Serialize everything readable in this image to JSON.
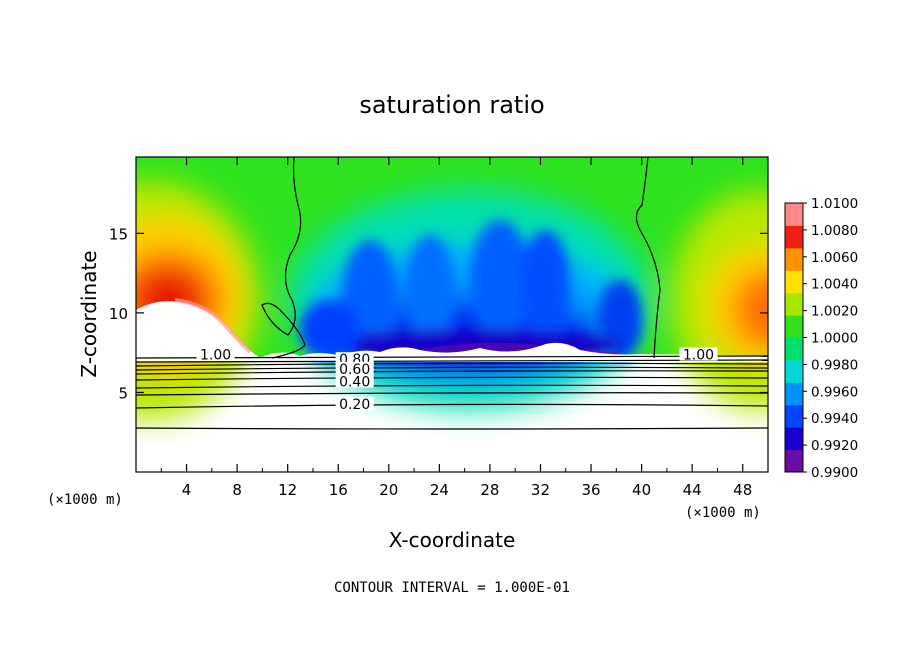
{
  "chart_data": {
    "type": "heatmap",
    "title": "saturation ratio",
    "xlabel": "X-coordinate",
    "ylabel": "Z-coordinate",
    "x_unit_label_left": "(×1000 m)",
    "x_unit_label_right": "(×1000 m)",
    "footer": "CONTOUR INTERVAL = 1.000E-01",
    "xlim": [
      0,
      50
    ],
    "ylim": [
      0,
      19.8
    ],
    "x_ticks": [
      4,
      8,
      12,
      16,
      20,
      24,
      28,
      32,
      36,
      40,
      44,
      48
    ],
    "x_tick_labels": [
      "4",
      "8",
      "12",
      "16",
      "20",
      "24",
      "28",
      "32",
      "36",
      "40",
      "44",
      "48"
    ],
    "y_ticks": [
      5,
      10,
      15
    ],
    "y_tick_labels": [
      "5",
      "10",
      "15"
    ],
    "colorbar": {
      "levels": [
        0.99,
        0.992,
        0.994,
        0.996,
        0.998,
        1.0,
        1.002,
        1.004,
        1.006,
        1.008,
        1.01
      ],
      "labels": [
        "0.9900",
        "0.9920",
        "0.9940",
        "0.9960",
        "0.9980",
        "1.0000",
        "1.0020",
        "1.0040",
        "1.0060",
        "1.0080",
        "1.0100"
      ],
      "colors": [
        "#6a0ca8",
        "#1a00d0",
        "#0044ff",
        "#0090ff",
        "#00d8d8",
        "#00e070",
        "#34e01a",
        "#a8e800",
        "#ffe000",
        "#ff9200",
        "#f02010",
        "#ff8888"
      ]
    },
    "contour_labels": [
      {
        "text": "1.00",
        "x": 6.3,
        "y": 7.2
      },
      {
        "text": "1.00",
        "x": 44.5,
        "y": 7.2
      },
      {
        "text": "0.80",
        "x": 17.3,
        "y": 6.9
      },
      {
        "text": "0.60",
        "x": 17.3,
        "y": 6.3
      },
      {
        "text": "0.40",
        "x": 17.3,
        "y": 5.5
      },
      {
        "text": "0.20",
        "x": 17.3,
        "y": 4.1
      }
    ],
    "grid": false
  }
}
